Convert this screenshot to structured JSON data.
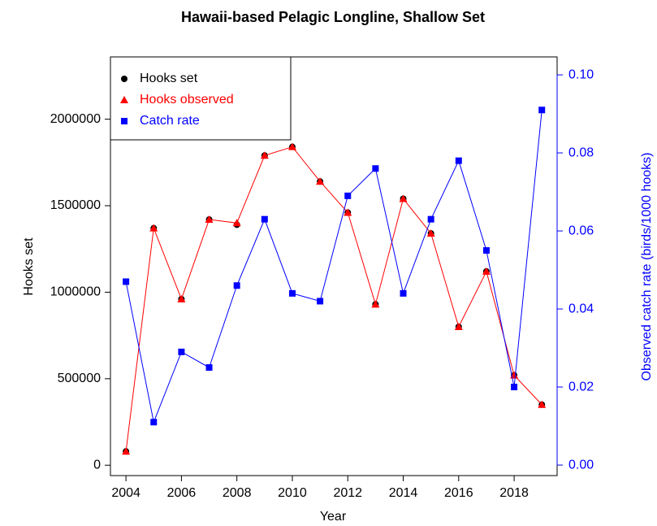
{
  "chart_data": {
    "type": "line",
    "title": "Hawaii-based Pelagic Longline, Shallow Set",
    "x_label": "Year",
    "y_label": "Hooks set",
    "y2_label": "Observed catch rate (birds/1000 hooks)",
    "x": [
      2004,
      2005,
      2006,
      2007,
      2008,
      2009,
      2010,
      2011,
      2012,
      2013,
      2014,
      2015,
      2016,
      2017,
      2018,
      2019
    ],
    "xlim": [
      2003.44,
      2019.55
    ],
    "xticks": [
      2004,
      2006,
      2008,
      2010,
      2012,
      2014,
      2016,
      2018
    ],
    "ylim": [
      -60000,
      2360000
    ],
    "yticks": [
      0,
      500000,
      1000000,
      1500000,
      2000000
    ],
    "y2lim": [
      -0.0027,
      0.1046
    ],
    "y2ticks": [
      {
        "value": 0,
        "label": "0.00"
      },
      {
        "value": 0.02,
        "label": "0.02"
      },
      {
        "value": 0.04,
        "label": "0.04"
      },
      {
        "value": 0.06,
        "label": "0.06"
      },
      {
        "value": 0.08,
        "label": "0.08"
      },
      {
        "value": 0.1,
        "label": "0.10"
      }
    ],
    "legend": "top-left",
    "series": [
      {
        "name": "Hooks set",
        "color": "#000000",
        "marker": "circle",
        "line": false,
        "values": [
          80000,
          1370000,
          960000,
          1420000,
          1390000,
          1790000,
          1840000,
          1640000,
          1460000,
          930000,
          1540000,
          1340000,
          800000,
          1120000,
          520000,
          350000
        ]
      },
      {
        "name": "Hooks observed",
        "color": "#ff0000",
        "marker": "triangle",
        "line": true,
        "values": [
          80000,
          1370000,
          960000,
          1420000,
          1400000,
          1790000,
          1840000,
          1640000,
          1460000,
          930000,
          1540000,
          1340000,
          800000,
          1120000,
          520000,
          350000
        ]
      },
      {
        "name": "Catch rate",
        "color": "#0000ff",
        "marker": "square",
        "line": true,
        "axis": "y2",
        "values": [
          0.047,
          0.011,
          0.029,
          0.025,
          0.046,
          0.063,
          0.044,
          0.042,
          0.069,
          0.076,
          0.044,
          0.063,
          0.078,
          0.055,
          0.02,
          0.091
        ]
      }
    ]
  }
}
